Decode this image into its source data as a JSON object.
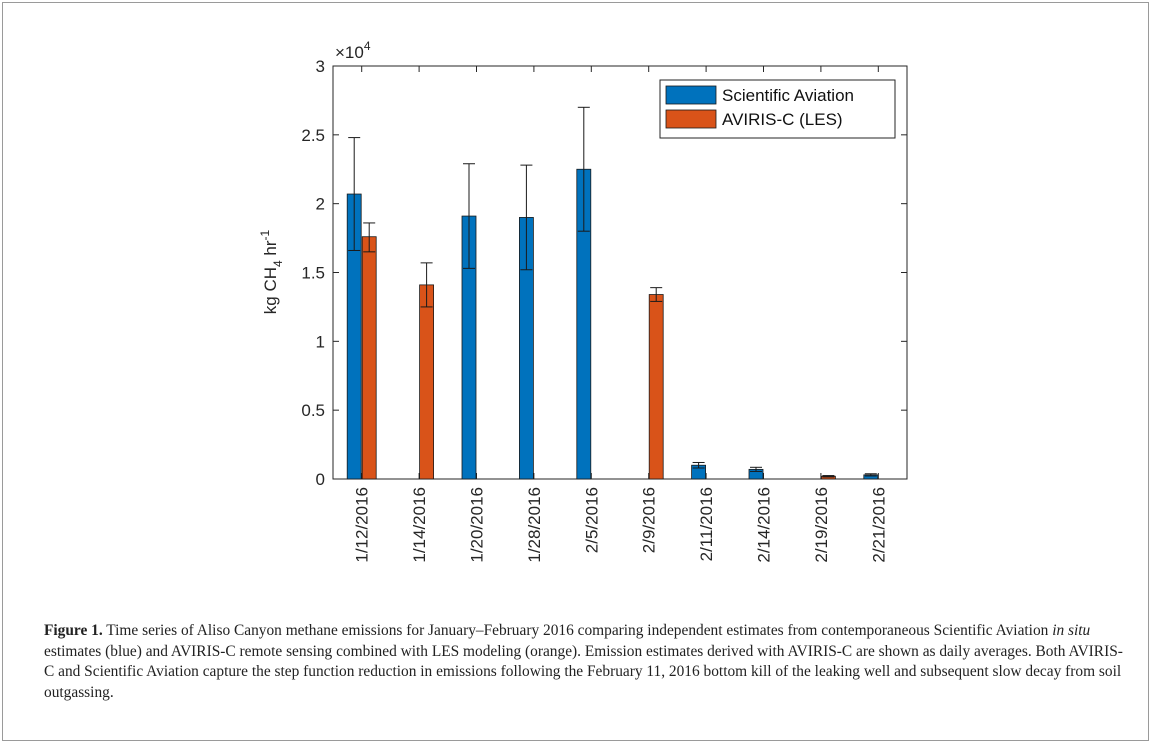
{
  "chart_data": {
    "type": "bar",
    "categories": [
      "1/12/2016",
      "1/14/2016",
      "1/20/2016",
      "1/28/2016",
      "2/5/2016",
      "2/9/2016",
      "2/11/2016",
      "2/14/2016",
      "2/19/2016",
      "2/21/2016"
    ],
    "series": [
      {
        "name": "Scientific Aviation",
        "color": "#0072BD",
        "values": [
          20700,
          null,
          19100,
          19000,
          22500,
          null,
          1000,
          700,
          null,
          300
        ],
        "err_low": [
          16600,
          null,
          15300,
          15200,
          18000,
          null,
          800,
          550,
          null,
          220
        ],
        "err_high": [
          24800,
          null,
          22900,
          22800,
          27000,
          null,
          1200,
          850,
          null,
          380
        ]
      },
      {
        "name": "AVIRIS-C (LES)",
        "color": "#D95319",
        "values": [
          17600,
          14100,
          null,
          null,
          null,
          13400,
          null,
          null,
          200,
          null
        ],
        "err_low": [
          16500,
          12500,
          null,
          null,
          null,
          12900,
          null,
          null,
          150,
          null
        ],
        "err_high": [
          18600,
          15700,
          null,
          null,
          null,
          13900,
          null,
          null,
          250,
          null
        ]
      }
    ],
    "ylim": [
      0,
      30000
    ],
    "yticks": [
      0,
      5000,
      10000,
      15000,
      20000,
      25000,
      30000
    ],
    "ytick_labels": [
      "0",
      "0.5",
      "1",
      "1.5",
      "2",
      "2.5",
      "3"
    ],
    "y_exponent_label": "×10",
    "y_exponent_power": "4",
    "ylabel_main": "kg CH",
    "ylabel_sub": "4",
    "ylabel_mid": " hr",
    "ylabel_sup": "-1",
    "xlabel": "",
    "legend_position": "top-right",
    "grid": false
  },
  "caption": {
    "label": "Figure 1.",
    "text_part1": " Time series of Aliso Canyon methane emissions for January–February 2016 comparing independent estimates from contemporaneous Scientific Aviation ",
    "italic": "in situ",
    "text_part2": " estimates (blue) and AVIRIS-C remote sensing combined with LES modeling (orange). Emission estimates derived with AVIRIS-C are shown as daily averages. Both AVIRIS-C and Scientific Aviation capture the step function reduction in emissions following the February 11, 2016 bottom kill of the leaking well and subsequent slow decay from soil outgassing."
  }
}
